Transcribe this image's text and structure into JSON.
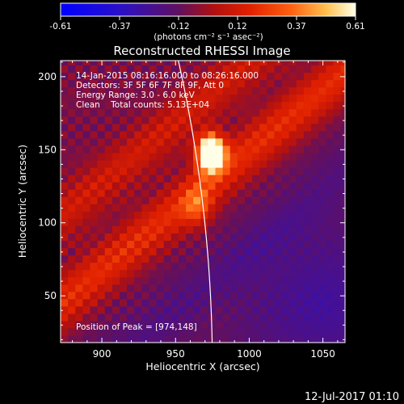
{
  "chart_data": {
    "type": "heatmap",
    "title": "Reconstructed RHESSI Image",
    "xlabel": "Heliocentric X (arcsec)",
    "ylabel": "Heliocentric Y (arcsec)",
    "xlim": [
      872,
      1065
    ],
    "ylim": [
      18,
      211
    ],
    "x_ticks": [
      900,
      950,
      1000,
      1050
    ],
    "y_ticks": [
      50,
      100,
      150,
      200
    ],
    "colorbar": {
      "ticks": [
        "-0.61",
        "-0.37",
        "-0.12",
        "0.12",
        "0.37",
        "0.61"
      ],
      "range": [
        -0.61,
        0.61
      ],
      "units_label": "(photons cm⁻² s⁻¹ asec⁻²)"
    },
    "info_lines": [
      "14-Jan-2015 08:16:16.000 to 08:26:16.000",
      "Detectors: 3F 5F 6F 7F 8F 9F, Att 0",
      "Energy Range: 3.0 - 6.0 keV",
      "Clean    Total counts: 5.13E+04"
    ],
    "peak_label": "Position of Peak = [974,148]",
    "peak": [
      974,
      148
    ],
    "secondary_source": [
      965,
      112
    ],
    "limb": {
      "center": [
        0,
        0
      ],
      "radius_arcsec": 975
    },
    "timestamp": "12-Jul-2017 01:10"
  }
}
